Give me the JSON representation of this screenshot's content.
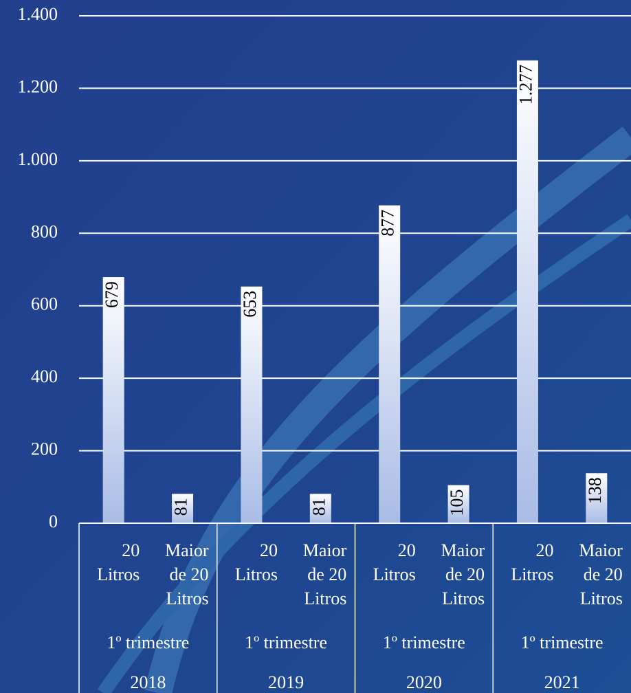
{
  "chart_data": {
    "type": "bar",
    "categories": [
      "20 Litros",
      "Maior de 20 Litros",
      "20 Litros",
      "Maior de 20 Litros",
      "20 Litros",
      "Maior de 20 Litros",
      "20 Litros",
      "Maior de 20 Litros"
    ],
    "groups": [
      [
        "1º trimestre",
        "2018"
      ],
      [
        "1º trimestre",
        "2019"
      ],
      [
        "1º trimestre",
        "2020"
      ],
      [
        "1º trimestre",
        "2021"
      ]
    ],
    "values": [
      679,
      81,
      653,
      81,
      877,
      105,
      1277,
      138
    ],
    "value_labels": [
      "679",
      "81",
      "653",
      "81",
      "877",
      "105",
      "1.277",
      "138"
    ],
    "color": "#ffffff",
    "ylim": [
      0,
      1400
    ],
    "yticks": [
      0,
      200,
      400,
      600,
      800,
      {
        "value": 1000,
        "label": "1.000"
      },
      {
        "value": 1200,
        "label": "1.200"
      },
      {
        "value": 1400,
        "label": "1.400"
      }
    ],
    "grid": true
  }
}
